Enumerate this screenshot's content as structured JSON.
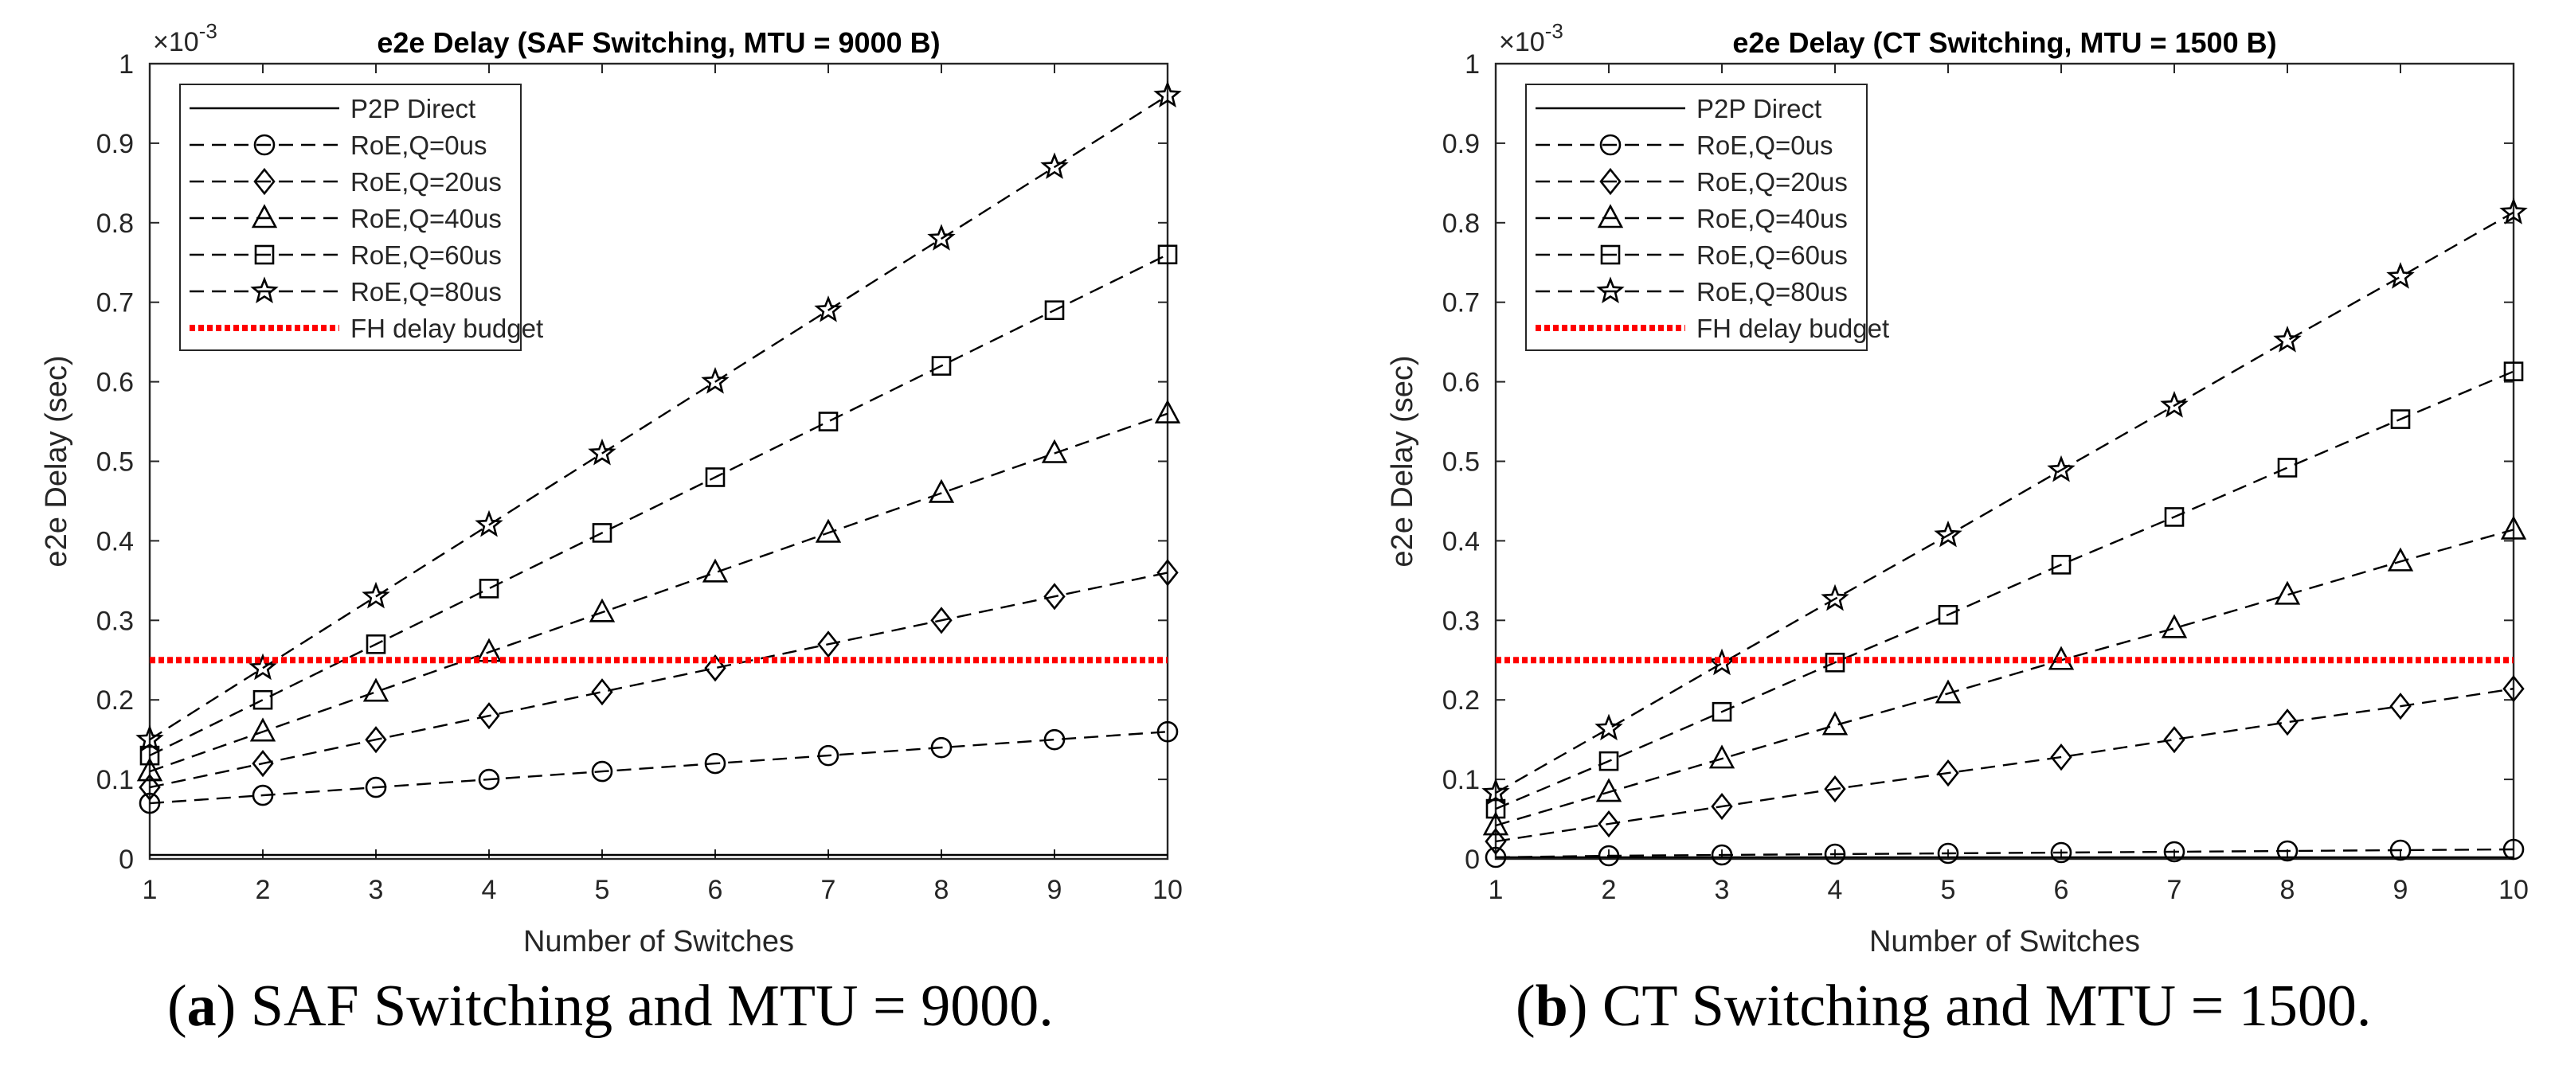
{
  "figure": {
    "subcaptions": [
      {
        "label": "a",
        "text": "SAF Switching and MTU = 9000."
      },
      {
        "label": "b",
        "text": "CT Switching and MTU = 1500."
      }
    ]
  },
  "chart_data": [
    {
      "type": "line",
      "title": "e2e Delay (SAF Switching, MTU = 9000 B)",
      "xlabel": "Number of Switches",
      "ylabel": "e2e Delay (sec)",
      "y_scale_label": "×10",
      "y_scale_exponent": "-3",
      "xlim": [
        1,
        10
      ],
      "ylim": [
        0,
        1
      ],
      "xticks": [
        "1",
        "2",
        "3",
        "4",
        "5",
        "6",
        "7",
        "8",
        "9",
        "10"
      ],
      "yticks": [
        "0",
        "0.1",
        "0.2",
        "0.3",
        "0.4",
        "0.5",
        "0.6",
        "0.7",
        "0.8",
        "0.9",
        "1"
      ],
      "x": [
        1,
        2,
        3,
        4,
        5,
        6,
        7,
        8,
        9,
        10
      ],
      "legend_position": "top-left",
      "series": [
        {
          "name": "P2P Direct",
          "values": [
            0.005,
            0.005,
            0.005,
            0.005,
            0.005,
            0.005,
            0.005,
            0.005,
            0.005,
            0.005
          ],
          "marker": "none",
          "style": "solid",
          "color": "#000000"
        },
        {
          "name": "RoE,Q=0us",
          "values": [
            0.07,
            0.08,
            0.09,
            0.1,
            0.11,
            0.12,
            0.13,
            0.14,
            0.15,
            0.16
          ],
          "marker": "circle",
          "style": "dashed",
          "color": "#000000"
        },
        {
          "name": "RoE,Q=20us",
          "values": [
            0.09,
            0.12,
            0.15,
            0.18,
            0.21,
            0.24,
            0.27,
            0.3,
            0.33,
            0.36
          ],
          "marker": "diamond",
          "style": "dashed",
          "color": "#000000"
        },
        {
          "name": "RoE,Q=40us",
          "values": [
            0.11,
            0.16,
            0.21,
            0.26,
            0.31,
            0.36,
            0.41,
            0.46,
            0.51,
            0.56
          ],
          "marker": "triangle",
          "style": "dashed",
          "color": "#000000"
        },
        {
          "name": "RoE,Q=60us",
          "values": [
            0.13,
            0.2,
            0.27,
            0.34,
            0.41,
            0.48,
            0.55,
            0.62,
            0.69,
            0.76
          ],
          "marker": "square",
          "style": "dashed",
          "color": "#000000"
        },
        {
          "name": "RoE,Q=80us",
          "values": [
            0.15,
            0.24,
            0.33,
            0.42,
            0.51,
            0.6,
            0.69,
            0.78,
            0.87,
            0.96
          ],
          "marker": "star",
          "style": "dashed",
          "color": "#000000"
        },
        {
          "name": "FH delay budget",
          "values": [
            0.25,
            0.25,
            0.25,
            0.25,
            0.25,
            0.25,
            0.25,
            0.25,
            0.25,
            0.25
          ],
          "marker": "none",
          "style": "dotted",
          "color": "#ff0000"
        }
      ]
    },
    {
      "type": "line",
      "title": "e2e Delay (CT Switching, MTU = 1500 B)",
      "xlabel": "Number of Switches",
      "ylabel": "e2e Delay (sec)",
      "y_scale_label": "×10",
      "y_scale_exponent": "-3",
      "xlim": [
        1,
        10
      ],
      "ylim": [
        0,
        1
      ],
      "xticks": [
        "1",
        "2",
        "3",
        "4",
        "5",
        "6",
        "7",
        "8",
        "9",
        "10"
      ],
      "yticks": [
        "0",
        "0.1",
        "0.2",
        "0.3",
        "0.4",
        "0.5",
        "0.6",
        "0.7",
        "0.8",
        "0.9",
        "1"
      ],
      "x": [
        1,
        2,
        3,
        4,
        5,
        6,
        7,
        8,
        9,
        10
      ],
      "legend_position": "top-left",
      "series": [
        {
          "name": "P2P Direct",
          "values": [
            0.002,
            0.002,
            0.002,
            0.002,
            0.002,
            0.002,
            0.002,
            0.002,
            0.002,
            0.002
          ],
          "marker": "none",
          "style": "solid",
          "color": "#000000"
        },
        {
          "name": "RoE,Q=0us",
          "values": [
            0.002,
            0.004,
            0.005,
            0.006,
            0.007,
            0.008,
            0.009,
            0.01,
            0.011,
            0.012
          ],
          "marker": "circle",
          "style": "dashed",
          "color": "#000000"
        },
        {
          "name": "RoE,Q=20us",
          "values": [
            0.022,
            0.044,
            0.066,
            0.088,
            0.108,
            0.128,
            0.15,
            0.172,
            0.192,
            0.214
          ],
          "marker": "diamond",
          "style": "dashed",
          "color": "#000000"
        },
        {
          "name": "RoE,Q=40us",
          "values": [
            0.042,
            0.084,
            0.126,
            0.168,
            0.208,
            0.25,
            0.29,
            0.332,
            0.374,
            0.414
          ],
          "marker": "triangle",
          "style": "dashed",
          "color": "#000000"
        },
        {
          "name": "RoE,Q=60us",
          "values": [
            0.063,
            0.123,
            0.185,
            0.247,
            0.307,
            0.37,
            0.43,
            0.492,
            0.553,
            0.613
          ],
          "marker": "square",
          "style": "dashed",
          "color": "#000000"
        },
        {
          "name": "RoE,Q=80us",
          "values": [
            0.083,
            0.164,
            0.246,
            0.327,
            0.407,
            0.489,
            0.57,
            0.652,
            0.732,
            0.813
          ],
          "marker": "star",
          "style": "dashed",
          "color": "#000000"
        },
        {
          "name": "FH delay budget",
          "values": [
            0.25,
            0.25,
            0.25,
            0.25,
            0.25,
            0.25,
            0.25,
            0.25,
            0.25,
            0.25
          ],
          "marker": "none",
          "style": "dotted",
          "color": "#ff0000"
        }
      ]
    }
  ]
}
